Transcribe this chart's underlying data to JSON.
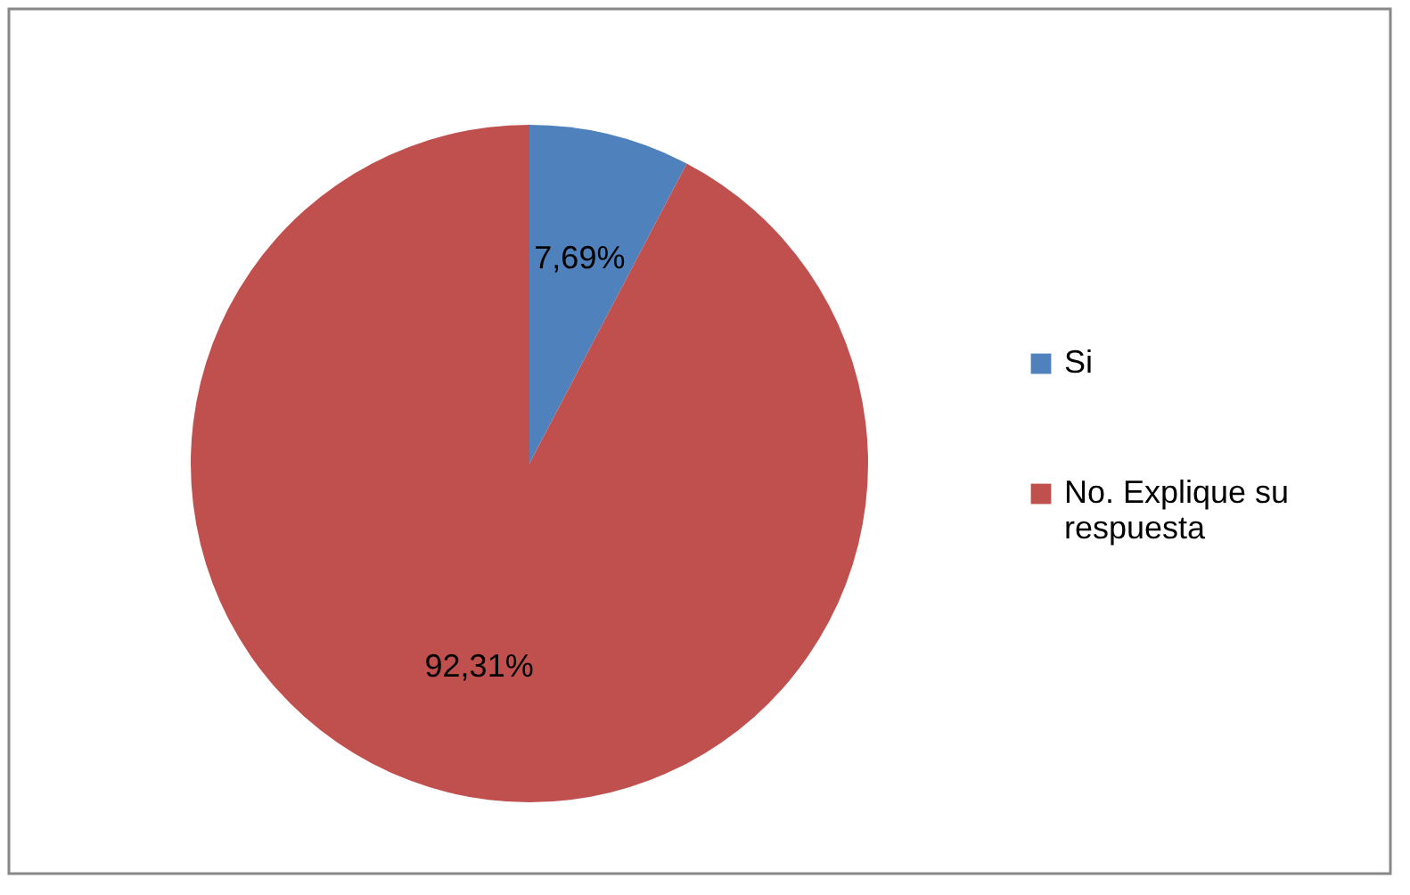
{
  "chart_data": {
    "type": "pie",
    "categories": [
      "Si",
      "No. Explique su respuesta"
    ],
    "values": [
      7.69,
      92.31
    ],
    "colors": [
      "#4f81bd",
      "#c0504d"
    ],
    "value_labels": [
      "7,69%",
      "92,31%"
    ],
    "legend": "right"
  }
}
